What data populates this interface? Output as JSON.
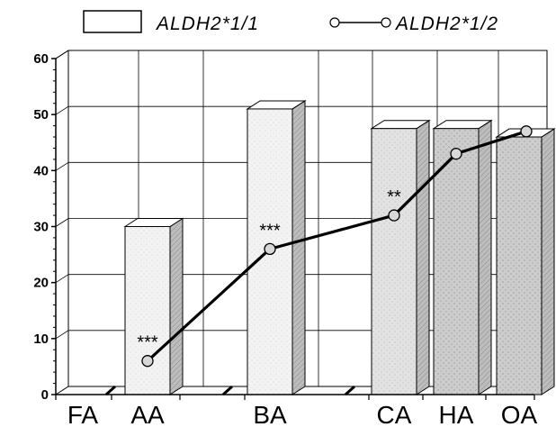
{
  "legend": {
    "bar_label": "ALDH2*1/1",
    "line_label": "ALDH2*1/2"
  },
  "chart_data": {
    "type": "bar",
    "categories": [
      "FA",
      "AA",
      "BA",
      "CA",
      "HA",
      "OA"
    ],
    "series": [
      {
        "name": "ALDH2*1/1",
        "kind": "bar",
        "values": [
          0,
          30,
          51,
          47.5,
          47.5,
          46
        ]
      },
      {
        "name": "ALDH2*1/2",
        "kind": "line",
        "values": [
          null,
          6,
          26,
          32,
          43,
          47
        ]
      }
    ],
    "annotations": [
      {
        "category": "AA",
        "text": "***"
      },
      {
        "category": "BA",
        "text": "***"
      },
      {
        "category": "CA",
        "text": "**"
      }
    ],
    "yticks": [
      "0",
      "10",
      "20",
      "30",
      "40",
      "50",
      "60"
    ],
    "ylim": [
      0,
      60
    ],
    "grid": true,
    "legend_position": "top",
    "colors": {
      "bar_light": "#f2f2f2",
      "bar_dark": "#cfcfcf",
      "line": "#000000",
      "marker_fill": "#d8d8d8"
    }
  }
}
